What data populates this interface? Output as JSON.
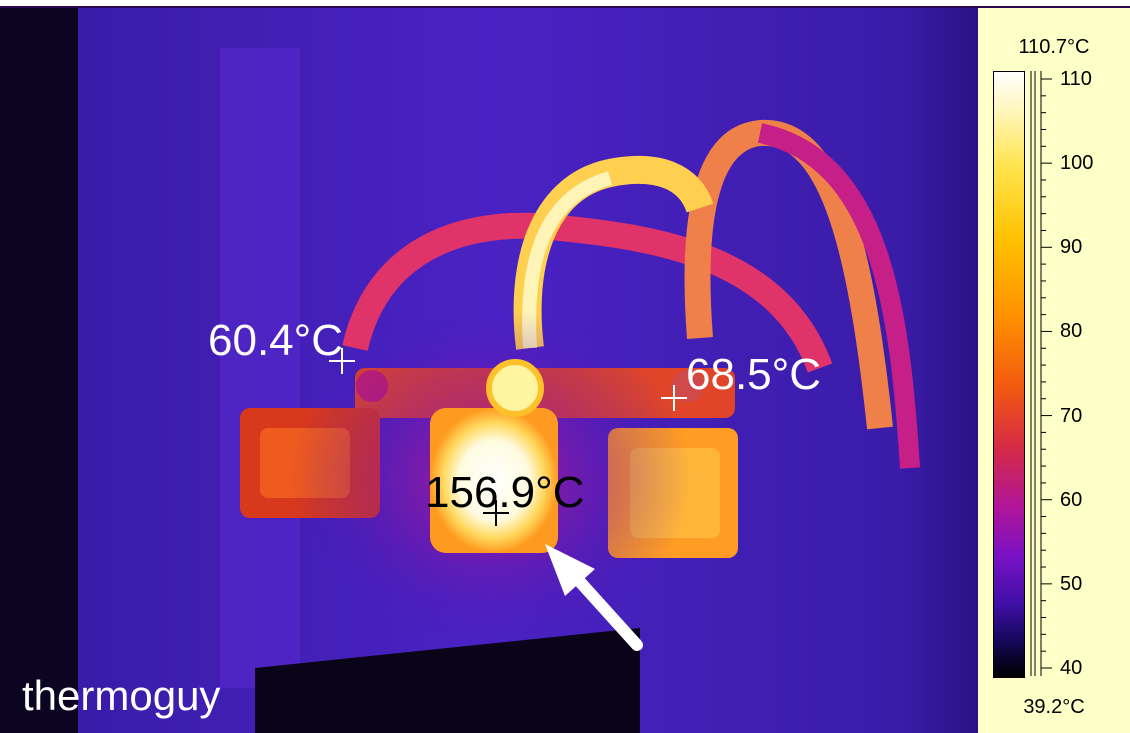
{
  "image": {
    "subject": "thermal infrared image of electrical terminal block with overheated connection",
    "annotations": {
      "left": "60.4°C",
      "right": "68.5°C",
      "center": "156.9°C"
    },
    "watermark": "thermoguy"
  },
  "legend": {
    "max_label": "110.7°C",
    "min_label": "39.2°C",
    "ticks": [
      "110",
      "100",
      "90",
      "80",
      "70",
      "60",
      "50",
      "40"
    ]
  },
  "colors": {
    "legend_background": "#ffffc8",
    "cold": "#2f1aa8",
    "hot": "#ffffff"
  }
}
